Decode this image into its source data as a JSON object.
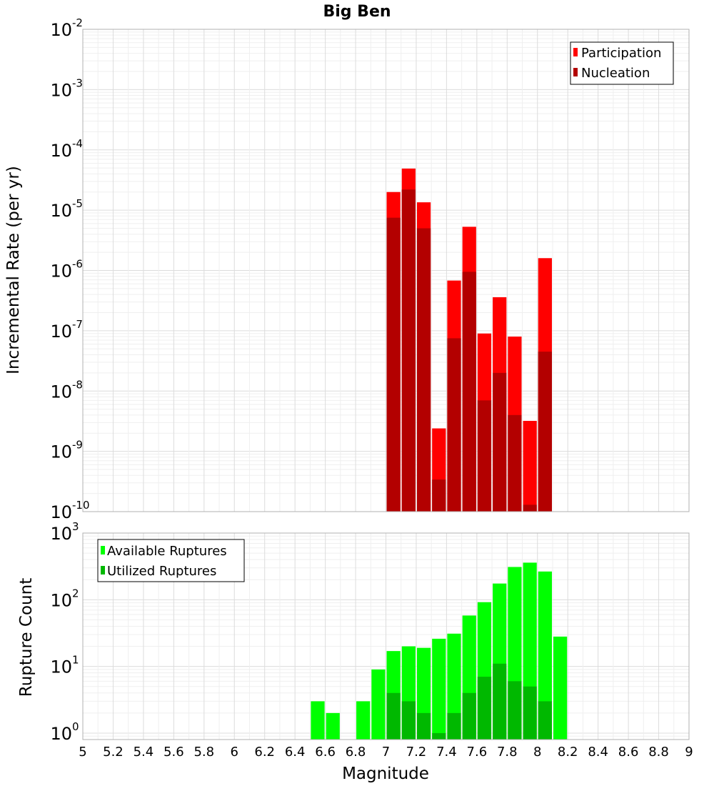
{
  "chart_data": [
    {
      "type": "bar",
      "title": "Big Ben",
      "xlabel": "",
      "ylabel": "Incremental Rate (per yr)",
      "xlim": [
        5,
        9
      ],
      "ylim": [
        1e-10,
        0.01
      ],
      "yscale": "log",
      "ytick_exponents": [
        "-10",
        "-9",
        "-8",
        "-7",
        "-6",
        "-5",
        "-4",
        "-3",
        "-2"
      ],
      "grid": true,
      "legend_position": "top-right",
      "bar_width": 0.1,
      "series": [
        {
          "name": "Participation",
          "color": "#ff0000",
          "x": [
            7.05,
            7.15,
            7.25,
            7.35,
            7.45,
            7.55,
            7.65,
            7.75,
            7.85,
            7.95,
            8.05
          ],
          "values": [
            2e-05,
            4.9e-05,
            1.35e-05,
            2.4e-09,
            6.8e-07,
            5.3e-06,
            9e-08,
            3.6e-07,
            8e-08,
            3.2e-09,
            1.6e-06
          ]
        },
        {
          "name": "Nucleation",
          "color": "#b30000",
          "x": [
            7.05,
            7.15,
            7.25,
            7.35,
            7.45,
            7.55,
            7.65,
            7.75,
            7.85,
            7.95,
            8.05
          ],
          "values": [
            7.5e-06,
            2.2e-05,
            5e-06,
            3.4e-10,
            7.5e-08,
            9.5e-07,
            7e-09,
            2e-08,
            4e-09,
            1.3e-10,
            4.5e-08
          ]
        }
      ]
    },
    {
      "type": "bar",
      "title": "",
      "xlabel": "Magnitude",
      "ylabel": "Rupture Count",
      "xlim": [
        5,
        9
      ],
      "ylim": [
        0.8,
        1000
      ],
      "yscale": "log",
      "ytick_exponents": [
        "0",
        "1",
        "2",
        "3"
      ],
      "xticks": [
        "5",
        "5.2",
        "5.4",
        "5.6",
        "5.8",
        "6",
        "6.2",
        "6.4",
        "6.6",
        "6.8",
        "7",
        "7.2",
        "7.4",
        "7.6",
        "7.8",
        "8",
        "8.2",
        "8.4",
        "8.6",
        "8.8",
        "9"
      ],
      "grid": true,
      "legend_position": "top-left",
      "bar_width": 0.1,
      "series": [
        {
          "name": "Available Ruptures",
          "color": "#00ff00",
          "x": [
            6.55,
            6.65,
            6.85,
            6.95,
            7.05,
            7.15,
            7.25,
            7.35,
            7.45,
            7.55,
            7.65,
            7.75,
            7.85,
            7.95,
            8.05,
            8.15
          ],
          "values": [
            3,
            2,
            3,
            9,
            17,
            20,
            19,
            26,
            31,
            58,
            92,
            175,
            310,
            360,
            265,
            28
          ]
        },
        {
          "name": "Utilized Ruptures",
          "color": "#00b800",
          "x": [
            7.05,
            7.15,
            7.25,
            7.35,
            7.45,
            7.55,
            7.65,
            7.75,
            7.85,
            7.95,
            8.05
          ],
          "values": [
            4,
            3,
            2,
            1,
            2,
            4,
            7,
            11,
            6,
            5,
            3
          ]
        }
      ]
    }
  ]
}
